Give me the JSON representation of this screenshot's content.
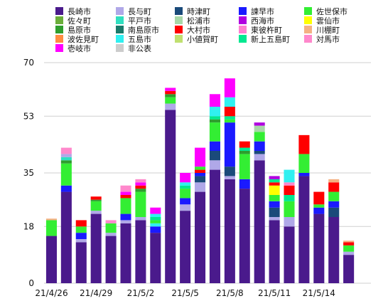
{
  "chart_data": {
    "type": "bar",
    "stacked": true,
    "y_axis": {
      "min": 0,
      "max": 70,
      "ticks": [
        0,
        18,
        35,
        53,
        70
      ],
      "tick_labels": [
        "0",
        "18",
        "35",
        "53",
        "70"
      ]
    },
    "x_tick_labels": [
      "21/4/26",
      "21/4/29",
      "21/5/2",
      "21/5/5",
      "21/5/8",
      "21/5/11",
      "21/5/14"
    ],
    "x_tick_positions": [
      0,
      3,
      6,
      9,
      12,
      15,
      18
    ],
    "categories": [
      "4/26",
      "4/27",
      "4/28",
      "4/29",
      "4/30",
      "5/1",
      "5/2",
      "5/3",
      "5/4",
      "5/5",
      "5/6",
      "5/7",
      "5/8",
      "5/9",
      "5/10",
      "5/11",
      "5/12",
      "5/13",
      "5/14",
      "5/15",
      "5/16",
      "5/17"
    ],
    "grid": true,
    "legend_placement": "top",
    "series": [
      {
        "name": "長崎市",
        "color": "#4a1a8c",
        "values": [
          15,
          29,
          13,
          22,
          15,
          19,
          20,
          16,
          55,
          23,
          29,
          36,
          33,
          30,
          39,
          20,
          18,
          34,
          22,
          21,
          9,
          0
        ]
      },
      {
        "name": "佐々町",
        "color": "#6aae3a",
        "values": [
          0,
          0,
          0,
          0,
          0,
          0,
          0,
          0,
          0,
          0,
          0,
          0,
          0,
          0,
          0,
          0,
          0,
          0,
          0,
          0,
          0,
          0
        ]
      },
      {
        "name": "島原市",
        "color": "#2e9e2e",
        "values": [
          0,
          0,
          0,
          0,
          0,
          0,
          0,
          0,
          0,
          0,
          0,
          0,
          0,
          0,
          0,
          0,
          0,
          0,
          0,
          0,
          0,
          0
        ]
      },
      {
        "name": "波佐見町",
        "color": "#ff8c42",
        "values": [
          0,
          0,
          0,
          0,
          0,
          0,
          0,
          0,
          0,
          0,
          0,
          0,
          0,
          0,
          0,
          0,
          0,
          0,
          0,
          0,
          0,
          0
        ]
      },
      {
        "name": "壱岐市",
        "color": "#ff00ff",
        "values": [
          0,
          0,
          0,
          0,
          0,
          0,
          0,
          0,
          0,
          0,
          0,
          0,
          0,
          0,
          0,
          0,
          0,
          0,
          0,
          0,
          0,
          0
        ]
      },
      {
        "name": "長与町",
        "color": "#b0a8e8",
        "values": [
          0,
          0,
          0,
          0,
          1,
          1,
          1,
          0,
          2,
          2,
          3,
          3,
          1,
          0,
          2,
          1,
          3,
          0,
          0,
          0,
          1,
          0
        ]
      },
      {
        "name": "平戸市",
        "color": "#30dfc0",
        "values": [
          0,
          0,
          0,
          0,
          0,
          0,
          0,
          0,
          0,
          0,
          0,
          0,
          0,
          0,
          0,
          0,
          0,
          0,
          0,
          0,
          0,
          0
        ]
      },
      {
        "name": "南島原市",
        "color": "#1a7a6a",
        "values": [
          0,
          0,
          0,
          0,
          0,
          0,
          0,
          0,
          0,
          0,
          0,
          0,
          0,
          0,
          0,
          0,
          0,
          0,
          0,
          0,
          0,
          0
        ]
      },
      {
        "name": "五島市",
        "color": "#30f0f0",
        "values": [
          0,
          0,
          0,
          0,
          0,
          0,
          0,
          0,
          0,
          0,
          0,
          0,
          0,
          0,
          0,
          0,
          0,
          0,
          0,
          0,
          0,
          0
        ]
      },
      {
        "name": "非公表",
        "color": "#cccccc",
        "values": [
          0,
          0,
          0,
          0,
          0,
          0,
          0,
          0,
          0,
          0,
          0,
          0,
          0,
          0,
          0,
          0,
          0,
          0,
          0,
          0,
          0,
          0
        ]
      },
      {
        "name": "時津町",
        "color": "#1a4a7a",
        "values": [
          0,
          0,
          0,
          0,
          0,
          0,
          0,
          0,
          0,
          1,
          2,
          3,
          3,
          0,
          1,
          3,
          0,
          0,
          0,
          3,
          0,
          0
        ]
      },
      {
        "name": "松浦市",
        "color": "#a8d8a8",
        "values": [
          0,
          0,
          0,
          0,
          0,
          0,
          0,
          0,
          0,
          0,
          0,
          0,
          0,
          0,
          0,
          0,
          0,
          0,
          0,
          0,
          0,
          0
        ]
      },
      {
        "name": "大村市",
        "color": "#ff0000",
        "values": [
          0,
          0,
          2,
          1,
          0,
          1,
          0,
          0,
          0,
          0,
          1,
          0,
          0,
          2,
          0,
          1,
          3,
          6,
          4,
          3,
          1,
          0
        ]
      },
      {
        "name": "小値賀町",
        "color": "#c0e070",
        "values": [
          0,
          0,
          0,
          0,
          0,
          0,
          0,
          0,
          0,
          0,
          0,
          0,
          0,
          0,
          0,
          0,
          0,
          0,
          0,
          0,
          0,
          0
        ]
      },
      {
        "name": "諫早市",
        "color": "#1a1aff",
        "values": [
          0,
          2,
          2,
          0,
          2,
          2,
          0,
          2,
          0,
          2,
          1,
          3,
          14,
          3,
          3,
          2,
          0,
          1,
          2,
          2,
          0,
          0
        ]
      },
      {
        "name": "西海市",
        "color": "#b000e0",
        "values": [
          0,
          0,
          0,
          0,
          0,
          0,
          0,
          0,
          0,
          0,
          0,
          0,
          0,
          0,
          1,
          1,
          0,
          0,
          0,
          0,
          0,
          0
        ]
      },
      {
        "name": "東彼杵町",
        "color": "#ff80d0",
        "values": [
          0,
          2,
          0,
          0,
          1,
          1,
          1,
          1,
          0,
          0,
          0,
          0,
          0,
          0,
          0,
          0,
          1,
          0,
          0,
          0,
          0,
          0
        ]
      },
      {
        "name": "新上五島町",
        "color": "#00e890",
        "values": [
          0,
          0,
          0,
          0,
          0,
          0,
          0,
          0,
          0,
          0,
          0,
          0,
          0,
          0,
          0,
          0,
          0,
          0,
          0,
          0,
          0,
          0
        ]
      },
      {
        "name": "佐世保市",
        "color": "#33ee33",
        "values": [
          5,
          6,
          2,
          3,
          2,
          5,
          8,
          2,
          2,
          3,
          2,
          6,
          4,
          8,
          3,
          2,
          5,
          6,
          1,
          3,
          2,
          0
        ]
      },
      {
        "name": "雲仙市",
        "color": "#ffff00",
        "values": [
          0,
          0,
          0,
          0,
          0,
          0,
          0,
          0,
          0,
          0,
          0,
          0,
          0,
          0,
          0,
          3,
          0,
          0,
          0,
          0,
          0,
          0
        ]
      },
      {
        "name": "川棚町",
        "color": "#f4b183",
        "values": [
          1,
          0,
          0,
          0,
          0,
          0,
          0,
          0,
          0,
          0,
          0,
          0,
          0,
          0,
          0,
          0,
          0,
          0,
          0,
          1,
          1,
          0
        ]
      },
      {
        "name": "対馬市",
        "color": "#ff88cc",
        "values": [
          0,
          1,
          0,
          0,
          0,
          1,
          1,
          0,
          0,
          0,
          0,
          0,
          0,
          0,
          0,
          0,
          0,
          0,
          0,
          0,
          0,
          0
        ]
      }
    ],
    "stack_override": [
      [
        {
          "s": "長崎市",
          "v": 15
        },
        {
          "s": "佐世保市",
          "v": 5
        },
        {
          "s": "川棚町",
          "v": 0.5
        }
      ],
      [
        {
          "s": "長崎市",
          "v": 29
        },
        {
          "s": "諫早市",
          "v": 2
        },
        {
          "s": "佐世保市",
          "v": 7
        },
        {
          "s": "島原市",
          "v": 1
        },
        {
          "s": "平戸市",
          "v": 1
        },
        {
          "s": "長与町",
          "v": 1
        },
        {
          "s": "対馬市",
          "v": 2
        }
      ],
      [
        {
          "s": "長崎市",
          "v": 13
        },
        {
          "s": "長与町",
          "v": 1
        },
        {
          "s": "諫早市",
          "v": 2
        },
        {
          "s": "佐世保市",
          "v": 2
        },
        {
          "s": "大村市",
          "v": 2
        }
      ],
      [
        {
          "s": "長崎市",
          "v": 22
        },
        {
          "s": "長与町",
          "v": 1
        },
        {
          "s": "佐世保市",
          "v": 3
        },
        {
          "s": "島原市",
          "v": 0.5
        },
        {
          "s": "大村市",
          "v": 1
        }
      ],
      [
        {
          "s": "長崎市",
          "v": 15
        },
        {
          "s": "長与町",
          "v": 1
        },
        {
          "s": "佐世保市",
          "v": 3
        },
        {
          "s": "対馬市",
          "v": 1
        }
      ],
      [
        {
          "s": "長崎市",
          "v": 19
        },
        {
          "s": "長与町",
          "v": 1
        },
        {
          "s": "諫早市",
          "v": 2
        },
        {
          "s": "佐世保市",
          "v": 5
        },
        {
          "s": "大村市",
          "v": 1
        },
        {
          "s": "壱岐市",
          "v": 1
        },
        {
          "s": "対馬市",
          "v": 2
        }
      ],
      [
        {
          "s": "長崎市",
          "v": 20
        },
        {
          "s": "長与町",
          "v": 1
        },
        {
          "s": "佐世保市",
          "v": 8
        },
        {
          "s": "島原市",
          "v": 1
        },
        {
          "s": "大村市",
          "v": 1
        },
        {
          "s": "壱岐市",
          "v": 1
        },
        {
          "s": "対馬市",
          "v": 1
        }
      ],
      [
        {
          "s": "長崎市",
          "v": 16
        },
        {
          "s": "諫早市",
          "v": 2
        },
        {
          "s": "五島市",
          "v": 1
        },
        {
          "s": "佐世保市",
          "v": 1
        },
        {
          "s": "新上五島町",
          "v": 1
        },
        {
          "s": "五島市",
          "v": 1
        },
        {
          "s": "壱岐市",
          "v": 2
        }
      ],
      [
        {
          "s": "長崎市",
          "v": 55
        },
        {
          "s": "長与町",
          "v": 2
        },
        {
          "s": "佐世保市",
          "v": 2
        },
        {
          "s": "島原市",
          "v": 1
        },
        {
          "s": "大村市",
          "v": 1
        },
        {
          "s": "壱岐市",
          "v": 1
        }
      ],
      [
        {
          "s": "長崎市",
          "v": 23
        },
        {
          "s": "長与町",
          "v": 2
        },
        {
          "s": "諫早市",
          "v": 2
        },
        {
          "s": "佐世保市",
          "v": 3
        },
        {
          "s": "新上五島町",
          "v": 1
        },
        {
          "s": "五島市",
          "v": 1
        },
        {
          "s": "壱岐市",
          "v": 3
        }
      ],
      [
        {
          "s": "長崎市",
          "v": 29
        },
        {
          "s": "長与町",
          "v": 3
        },
        {
          "s": "時津町",
          "v": 2
        },
        {
          "s": "諫早市",
          "v": 1
        },
        {
          "s": "大村市",
          "v": 1
        },
        {
          "s": "佐世保市",
          "v": 1
        },
        {
          "s": "壱岐市",
          "v": 6
        }
      ],
      [
        {
          "s": "長崎市",
          "v": 36
        },
        {
          "s": "長与町",
          "v": 3
        },
        {
          "s": "時津町",
          "v": 3
        },
        {
          "s": "諫早市",
          "v": 3
        },
        {
          "s": "佐世保市",
          "v": 6
        },
        {
          "s": "島原市",
          "v": 1
        },
        {
          "s": "新上五島町",
          "v": 1
        },
        {
          "s": "五島市",
          "v": 3
        },
        {
          "s": "壱岐市",
          "v": 4
        }
      ],
      [
        {
          "s": "長崎市",
          "v": 33
        },
        {
          "s": "長与町",
          "v": 1
        },
        {
          "s": "時津町",
          "v": 3
        },
        {
          "s": "諫早市",
          "v": 14
        },
        {
          "s": "佐世保市",
          "v": 1
        },
        {
          "s": "新上五島町",
          "v": 1
        },
        {
          "s": "大村市",
          "v": 3
        },
        {
          "s": "五島市",
          "v": 3
        },
        {
          "s": "壱岐市",
          "v": 6
        }
      ],
      [
        {
          "s": "長崎市",
          "v": 30
        },
        {
          "s": "諫早市",
          "v": 3
        },
        {
          "s": "佐世保市",
          "v": 8
        },
        {
          "s": "島原市",
          "v": 1
        },
        {
          "s": "新上五島町",
          "v": 1
        },
        {
          "s": "大村市",
          "v": 2
        }
      ],
      [
        {
          "s": "長崎市",
          "v": 39
        },
        {
          "s": "長与町",
          "v": 2
        },
        {
          "s": "時津町",
          "v": 1
        },
        {
          "s": "諫早市",
          "v": 3
        },
        {
          "s": "佐世保市",
          "v": 3
        },
        {
          "s": "松浦市",
          "v": 2
        },
        {
          "s": "西海市",
          "v": 1
        }
      ],
      [
        {
          "s": "長崎市",
          "v": 20
        },
        {
          "s": "長与町",
          "v": 1
        },
        {
          "s": "時津町",
          "v": 3
        },
        {
          "s": "諫早市",
          "v": 2
        },
        {
          "s": "佐世保市",
          "v": 2
        },
        {
          "s": "雲仙市",
          "v": 3
        },
        {
          "s": "大村市",
          "v": 1
        },
        {
          "s": "新上五島町",
          "v": 1
        },
        {
          "s": "西海市",
          "v": 1
        }
      ],
      [
        {
          "s": "長崎市",
          "v": 18
        },
        {
          "s": "長与町",
          "v": 3
        },
        {
          "s": "佐世保市",
          "v": 5
        },
        {
          "s": "新上五島町",
          "v": 2
        },
        {
          "s": "大村市",
          "v": 3
        },
        {
          "s": "対馬市",
          "v": 1
        },
        {
          "s": "五島市",
          "v": 4
        }
      ],
      [
        {
          "s": "長崎市",
          "v": 34
        },
        {
          "s": "諫早市",
          "v": 1
        },
        {
          "s": "佐世保市",
          "v": 6
        },
        {
          "s": "大村市",
          "v": 6
        }
      ],
      [
        {
          "s": "長崎市",
          "v": 22
        },
        {
          "s": "諫早市",
          "v": 2
        },
        {
          "s": "佐世保市",
          "v": 1
        },
        {
          "s": "大村市",
          "v": 4
        }
      ],
      [
        {
          "s": "長崎市",
          "v": 21
        },
        {
          "s": "時津町",
          "v": 3
        },
        {
          "s": "諫早市",
          "v": 2
        },
        {
          "s": "佐世保市",
          "v": 3
        },
        {
          "s": "大村市",
          "v": 3
        },
        {
          "s": "川棚町",
          "v": 1
        }
      ],
      [
        {
          "s": "長崎市",
          "v": 9
        },
        {
          "s": "長与町",
          "v": 1
        },
        {
          "s": "佐世保市",
          "v": 2
        },
        {
          "s": "大村市",
          "v": 1
        },
        {
          "s": "川棚町",
          "v": 0.5
        }
      ],
      []
    ]
  }
}
